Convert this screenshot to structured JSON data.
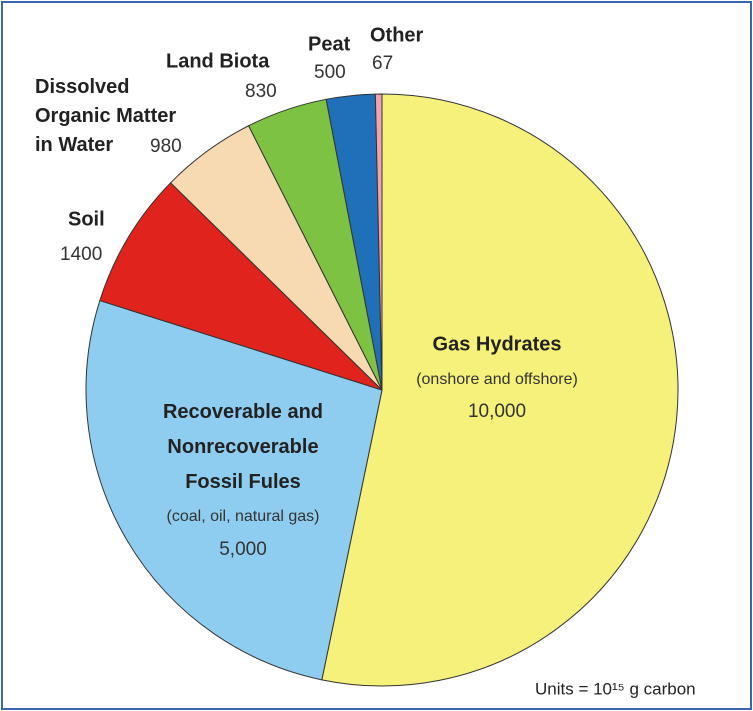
{
  "chart_data": {
    "type": "pie",
    "categories": [
      "Gas Hydrates",
      "Recoverable and\nNonrecoverable\nFossil Fules",
      "Soil",
      "Dissolved\nOrganic Matter\nin Water",
      "Land Biota",
      "Peat",
      "Other"
    ],
    "descriptions": [
      "(onshore and offshore)",
      "(coal, oil, natural gas)",
      null,
      null,
      null,
      null,
      null
    ],
    "values": [
      10000,
      5000,
      1400,
      980,
      830,
      500,
      67
    ],
    "value_labels": [
      "10,000",
      "5,000",
      "1400",
      "980",
      "830",
      "500",
      "67"
    ],
    "colors": [
      "#f6f17a",
      "#8fcdf0",
      "#e0231c",
      "#f8dab2",
      "#7dc243",
      "#1f70b8",
      "#f2a3b3"
    ],
    "note": "Units = 10¹⁵ g carbon"
  }
}
